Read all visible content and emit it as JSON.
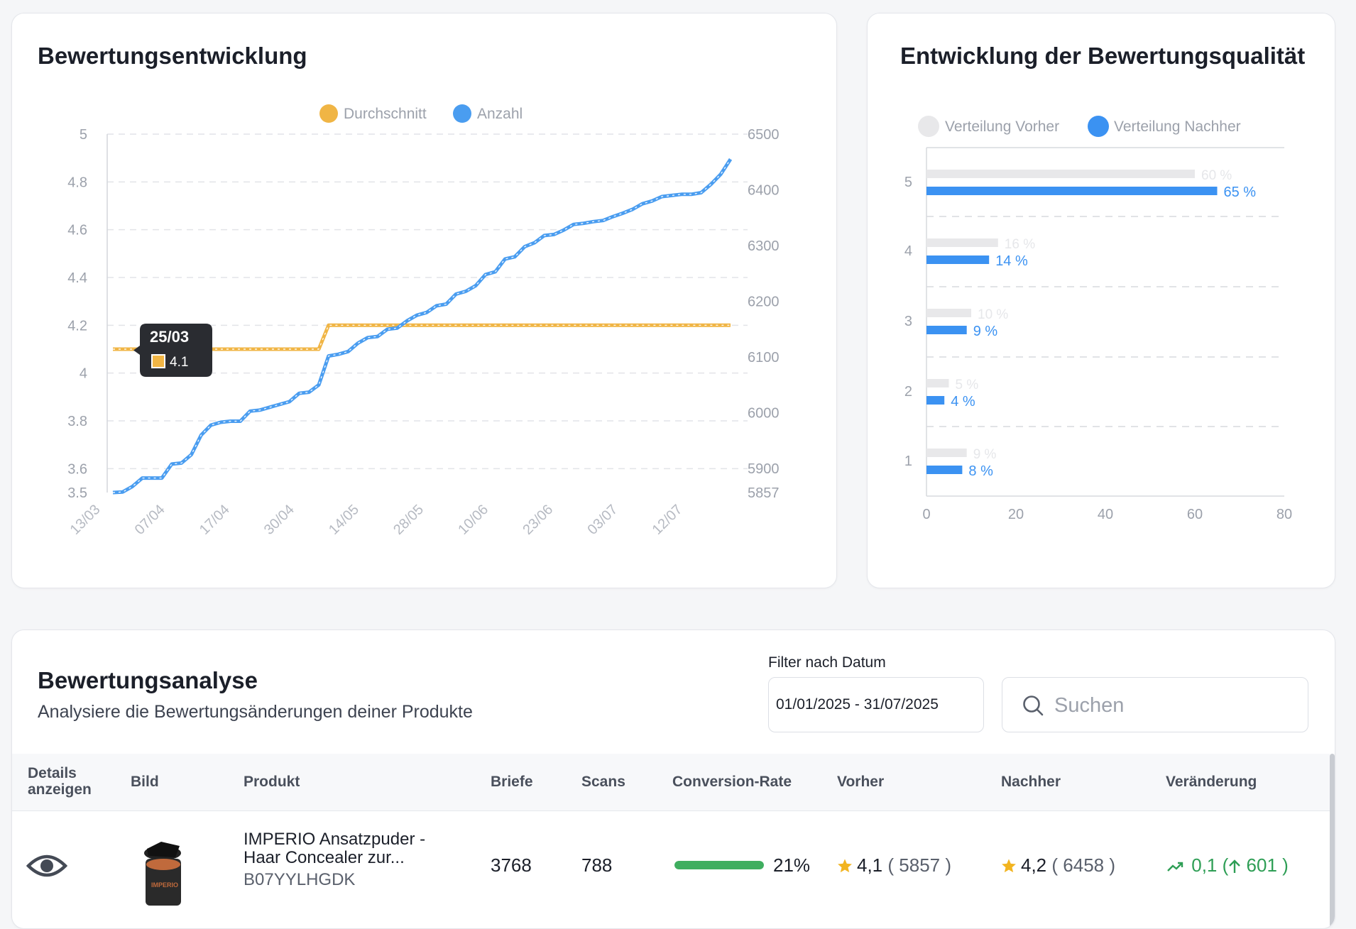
{
  "review_trend": {
    "title": "Bewertungsentwicklung",
    "legend": {
      "average": "Durchschnitt",
      "count": "Anzahl"
    },
    "tooltip": {
      "date": "25/03",
      "value": "4.1"
    },
    "colors": {
      "average": "#f0b545",
      "count": "#4a9df0"
    },
    "chart_data": {
      "type": "line",
      "title": "Bewertungsentwicklung",
      "x_ticks": [
        "13/03",
        "07/04",
        "17/04",
        "30/04",
        "14/05",
        "28/05",
        "10/06",
        "23/06",
        "03/07",
        "12/07"
      ],
      "y_left": {
        "ticks": [
          "5",
          "4.8",
          "4.6",
          "4.4",
          "4.2",
          "4",
          "3.8",
          "3.6",
          "3.5"
        ],
        "lim": [
          3.5,
          5
        ]
      },
      "y_right": {
        "ticks": [
          "6500",
          "6400",
          "6300",
          "6200",
          "6100",
          "6000",
          "5900",
          "5857"
        ],
        "lim": [
          5857,
          6500
        ]
      },
      "grid": true,
      "legend_position": "top",
      "series": [
        {
          "name": "Durchschnitt",
          "axis": "left",
          "values": [
            4.1,
            4.1,
            4.1,
            4.1,
            4.1,
            4.1,
            4.1,
            4.1,
            4.1,
            4.1,
            4.1,
            4.1,
            4.1,
            4.1,
            4.1,
            4.1,
            4.1,
            4.1,
            4.1,
            4.1,
            4.1,
            4.1,
            4.2,
            4.2,
            4.2,
            4.2,
            4.2,
            4.2,
            4.2,
            4.2,
            4.2,
            4.2,
            4.2,
            4.2,
            4.2,
            4.2,
            4.2,
            4.2,
            4.2,
            4.2,
            4.2,
            4.2,
            4.2,
            4.2,
            4.2,
            4.2,
            4.2,
            4.2,
            4.2,
            4.2,
            4.2,
            4.2,
            4.2,
            4.2,
            4.2,
            4.2,
            4.2,
            4.2,
            4.2,
            4.2,
            4.2,
            4.2,
            4.2,
            4.2
          ]
        },
        {
          "name": "Anzahl",
          "axis": "right",
          "values": [
            5857,
            5858,
            5868,
            5883,
            5883,
            5883,
            5908,
            5910,
            5925,
            5960,
            5978,
            5983,
            5985,
            5985,
            6003,
            6005,
            6010,
            6015,
            6020,
            6035,
            6037,
            6050,
            6102,
            6105,
            6110,
            6125,
            6135,
            6137,
            6150,
            6152,
            6165,
            6175,
            6180,
            6192,
            6195,
            6213,
            6218,
            6228,
            6248,
            6253,
            6276,
            6280,
            6298,
            6305,
            6318,
            6320,
            6328,
            6338,
            6340,
            6343,
            6345,
            6352,
            6358,
            6365,
            6375,
            6380,
            6388,
            6390,
            6392,
            6392,
            6395,
            6410,
            6428,
            6455
          ]
        }
      ]
    }
  },
  "quality": {
    "title": "Entwicklung der Bewertungsqualität",
    "legend": {
      "before": "Verteilung Vorher",
      "after": "Verteilung Nachher"
    },
    "colors": {
      "before": "#e8e8ea",
      "after": "#3b92f2"
    },
    "chart_data": {
      "type": "bar",
      "orientation": "horizontal",
      "title": "Entwicklung der Bewertungsqualität",
      "categories": [
        "5",
        "4",
        "3",
        "2",
        "1"
      ],
      "x_ticks": [
        "0",
        "20",
        "40",
        "60",
        "80"
      ],
      "xlim": [
        0,
        80
      ],
      "legend_position": "top",
      "grid": true,
      "series": [
        {
          "name": "Verteilung Vorher",
          "values": [
            60,
            16,
            10,
            5,
            9
          ],
          "labels": [
            "60 %",
            "16 %",
            "10 %",
            "5 %",
            "9 %"
          ]
        },
        {
          "name": "Verteilung Nachher",
          "values": [
            65,
            14,
            9,
            4,
            8
          ],
          "labels": [
            "65 %",
            "14 %",
            "9 %",
            "4 %",
            "8 %"
          ]
        }
      ]
    }
  },
  "analysis": {
    "title": "Bewertungsanalyse",
    "subtitle": "Analysiere die Bewertungsänderungen deiner Produkte",
    "filter_label": "Filter nach Datum",
    "date_range": "01/01/2025 - 31/07/2025",
    "search_placeholder": "Suchen",
    "columns": {
      "details_line1": "Details",
      "details_line2": "anzeigen",
      "image": "Bild",
      "product": "Produkt",
      "letters": "Briefe",
      "scans": "Scans",
      "conversion": "Conversion-Rate",
      "before": "Vorher",
      "after": "Nachher",
      "change": "Veränderung"
    },
    "rows": [
      {
        "product_line1": "IMPERIO Ansatzpuder -",
        "product_line2": "Haar Concealer zur...",
        "asin": "B07YYLHGDK",
        "letters": "3768",
        "scans": "788",
        "conversion_pct": 21,
        "conversion_label": "21%",
        "before_rating": "4,1",
        "before_count": "( 5857 )",
        "after_rating": "4,2",
        "after_count": "( 6458 )",
        "change_value": "0,1",
        "change_paren_open": "(",
        "change_count": "601",
        "change_paren_close": ")",
        "product_label": "IMPERIO"
      }
    ],
    "colors": {
      "conversion_bar": "#3fae5f",
      "star": "#f2b420",
      "change": "#2e9e55"
    },
    "icons": {
      "details": "eye-icon",
      "search": "search-icon",
      "trend": "trending-up-icon",
      "arrow": "arrow-up-icon",
      "star": "star-icon"
    }
  }
}
